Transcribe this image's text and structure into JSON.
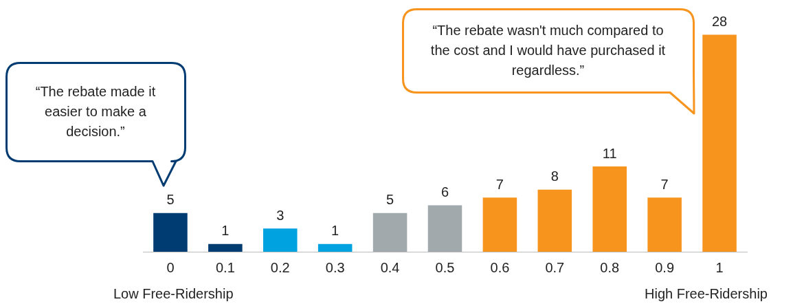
{
  "chart_data": {
    "type": "bar",
    "categories": [
      "0",
      "0.1",
      "0.2",
      "0.3",
      "0.4",
      "0.5",
      "0.6",
      "0.7",
      "0.8",
      "0.9",
      "1"
    ],
    "values": [
      5,
      1,
      3,
      1,
      5,
      6,
      7,
      8,
      11,
      7,
      28
    ],
    "colors": [
      "#003b71",
      "#003b71",
      "#00a3e0",
      "#00a3e0",
      "#a2a9ad",
      "#a2a9ad",
      "#f7941d",
      "#f7941d",
      "#f7941d",
      "#f7941d",
      "#f7941d"
    ],
    "data_labels": true,
    "tick_labels": "x",
    "grid": false,
    "legend": false,
    "annotations": [
      "“The rebate made it easier to make a decision.”",
      "“The rebate wasn't much compared to the cost and I would have purchased it regardless.”",
      "Low Free-Ridership",
      "High Free-Ridership"
    ]
  }
}
